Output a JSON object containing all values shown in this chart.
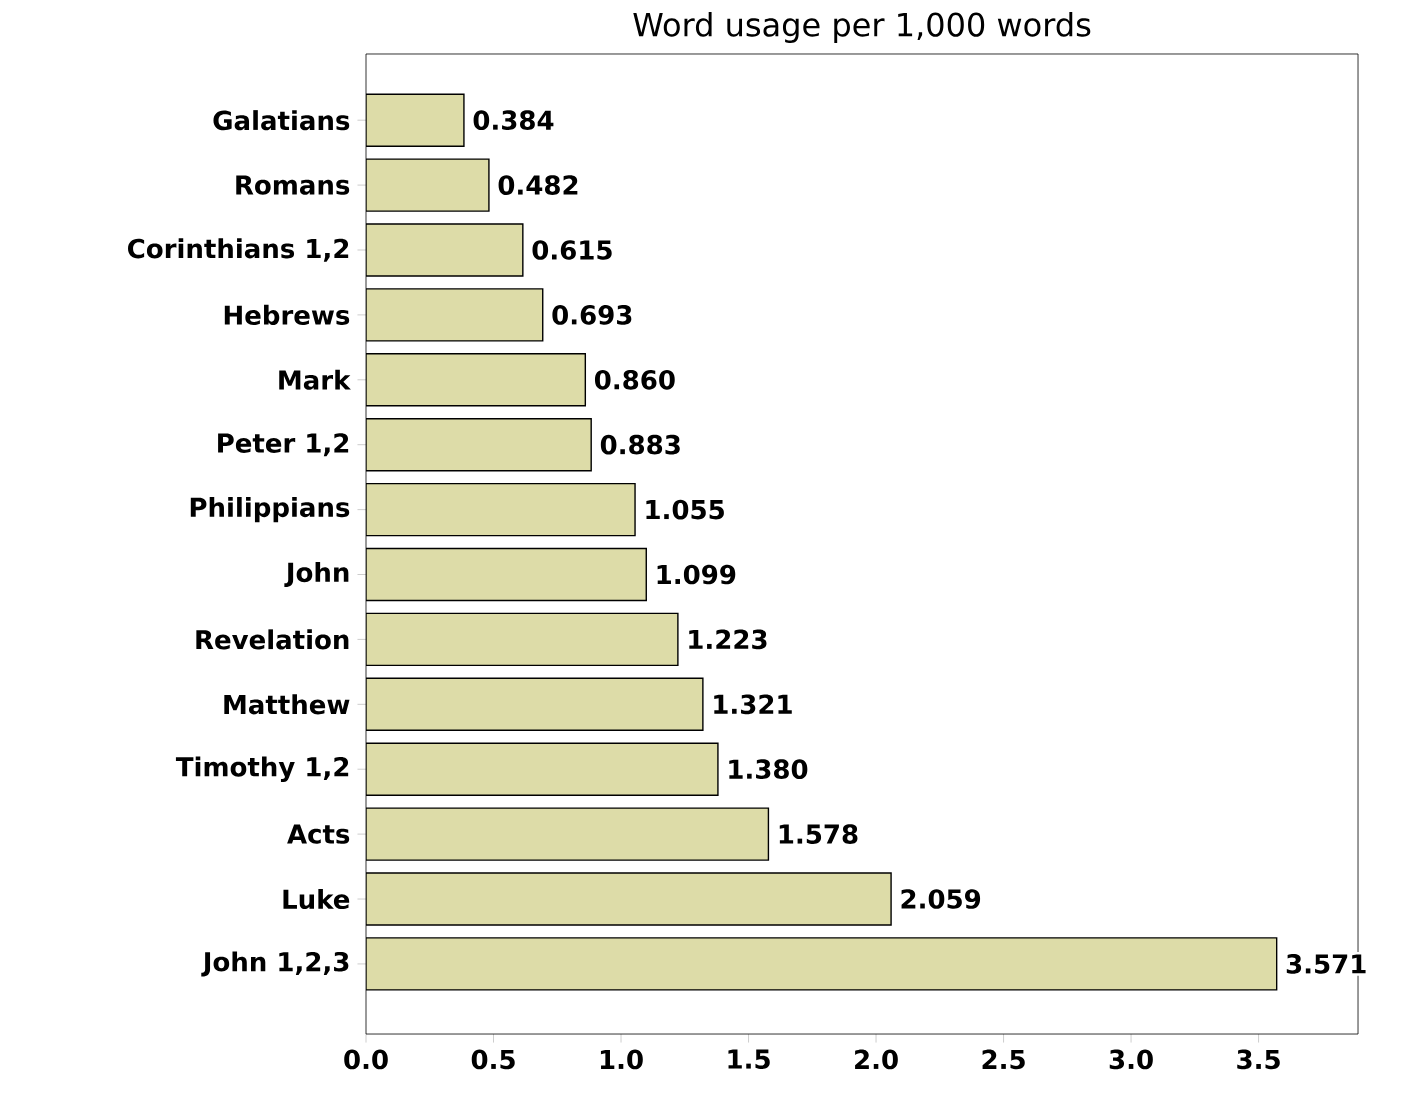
{
  "chart_data": {
    "type": "bar",
    "orientation": "horizontal",
    "title": "Word usage per 1,000 words",
    "categories": [
      "Galatians",
      "Romans",
      "Corinthians 1,2",
      "Hebrews",
      "Mark",
      "Peter 1,2",
      "Philippians",
      "John",
      "Revelation",
      "Matthew",
      "Timothy 1,2",
      "Acts",
      "Luke",
      "John 1,2,3"
    ],
    "values": [
      0.384,
      0.482,
      0.615,
      0.693,
      0.86,
      0.883,
      1.055,
      1.099,
      1.223,
      1.321,
      1.38,
      1.578,
      2.059,
      3.571
    ],
    "value_labels": [
      "0.384",
      "0.482",
      "0.615",
      "0.693",
      "0.860",
      "0.883",
      "1.055",
      "1.099",
      "1.223",
      "1.321",
      "1.380",
      "1.578",
      "2.059",
      "3.571"
    ],
    "color": "#dddca8",
    "xlim": [
      0,
      3.89
    ],
    "xticks": [
      {
        "value": 0,
        "label": "0.0"
      },
      {
        "value": 0.5,
        "label": "0.5"
      },
      {
        "value": 1,
        "label": "1.0"
      },
      {
        "value": 1.5,
        "label": "1.5"
      },
      {
        "value": 2,
        "label": "2.0"
      },
      {
        "value": 2.5,
        "label": "2.5"
      },
      {
        "value": 3,
        "label": "3.0"
      },
      {
        "value": 3.5,
        "label": "3.5"
      }
    ],
    "grid": false
  }
}
